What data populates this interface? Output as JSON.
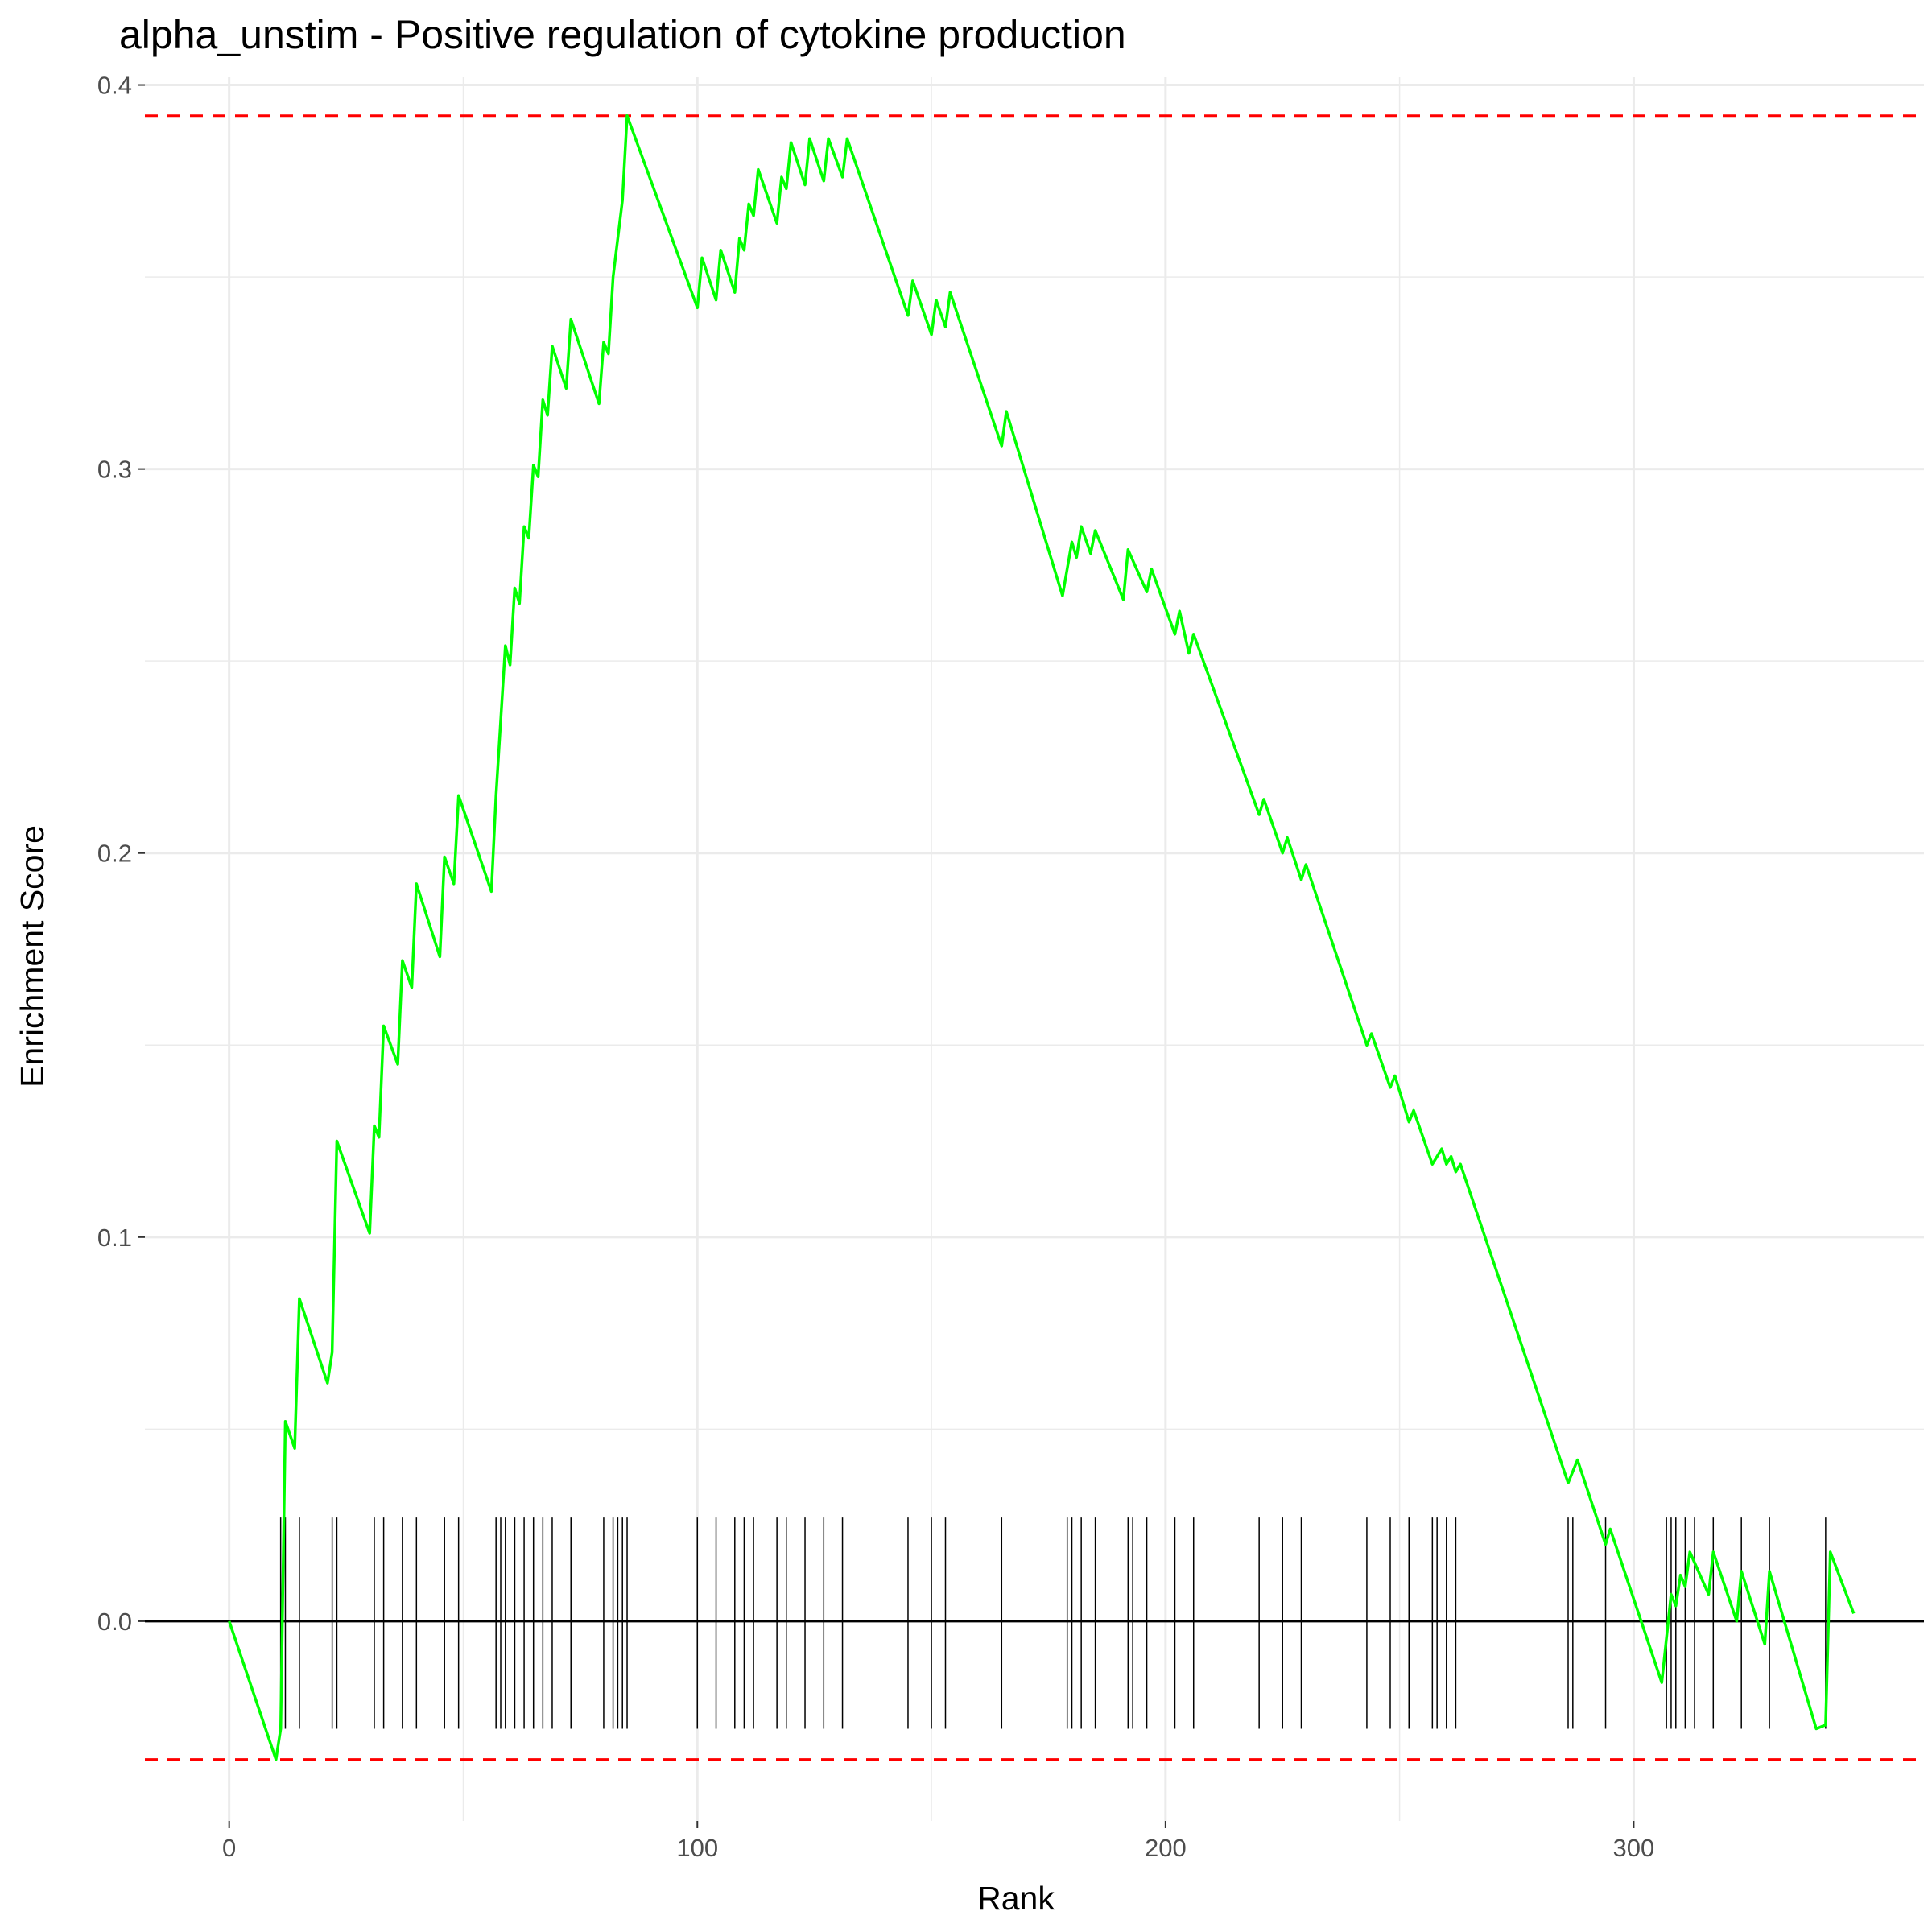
{
  "chart_data": {
    "type": "line",
    "title": "alpha_unstim - Positive regulation of cytokine production",
    "xlabel": "Rank",
    "ylabel": "Enrichment Score",
    "xlim": [
      -18,
      362
    ],
    "ylim": [
      -0.052,
      0.402
    ],
    "x_ticks": [
      0,
      100,
      200,
      300
    ],
    "y_ticks": [
      0.0,
      0.1,
      0.2,
      0.3,
      0.4
    ],
    "x_tick_labels": [
      "0",
      "100",
      "200",
      "300"
    ],
    "y_tick_labels": [
      "0.0",
      "0.1",
      "0.2",
      "0.3",
      "0.4"
    ],
    "grid": true,
    "legend": "none",
    "colors": {
      "line": "#00ff00",
      "threshold": "#ff0000",
      "zero_line": "#000000",
      "ticks": "#000000",
      "grid": "#ebebeb"
    },
    "series": [
      {
        "values": [
          [
            0,
            0.0
          ],
          [
            10,
            -0.036
          ],
          [
            11,
            -0.028
          ],
          [
            12,
            0.052
          ],
          [
            14,
            0.045
          ],
          [
            15,
            0.084
          ],
          [
            21,
            0.062
          ],
          [
            22,
            0.07
          ],
          [
            23,
            0.125
          ],
          [
            30,
            0.101
          ],
          [
            31,
            0.129
          ],
          [
            32,
            0.126
          ],
          [
            33,
            0.155
          ],
          [
            36,
            0.145
          ],
          [
            37,
            0.172
          ],
          [
            39,
            0.165
          ],
          [
            40,
            0.192
          ],
          [
            45,
            0.173
          ],
          [
            46,
            0.199
          ],
          [
            48,
            0.192
          ],
          [
            49,
            0.215
          ],
          [
            56,
            0.19
          ],
          [
            57,
            0.215
          ],
          [
            59,
            0.254
          ],
          [
            60,
            0.249
          ],
          [
            61,
            0.269
          ],
          [
            62,
            0.265
          ],
          [
            63,
            0.285
          ],
          [
            64,
            0.282
          ],
          [
            65,
            0.301
          ],
          [
            66,
            0.298
          ],
          [
            67,
            0.318
          ],
          [
            68,
            0.314
          ],
          [
            69,
            0.332
          ],
          [
            72,
            0.321
          ],
          [
            73,
            0.339
          ],
          [
            79,
            0.317
          ],
          [
            80,
            0.333
          ],
          [
            81,
            0.33
          ],
          [
            82,
            0.35
          ],
          [
            84,
            0.37
          ],
          [
            85,
            0.392
          ],
          [
            100,
            0.342
          ],
          [
            101,
            0.355
          ],
          [
            104,
            0.344
          ],
          [
            105,
            0.357
          ],
          [
            108,
            0.346
          ],
          [
            109,
            0.36
          ],
          [
            110,
            0.357
          ],
          [
            111,
            0.369
          ],
          [
            112,
            0.366
          ],
          [
            113,
            0.378
          ],
          [
            117,
            0.364
          ],
          [
            118,
            0.376
          ],
          [
            119,
            0.373
          ],
          [
            120,
            0.385
          ],
          [
            123,
            0.374
          ],
          [
            124,
            0.386
          ],
          [
            127,
            0.375
          ],
          [
            128,
            0.386
          ],
          [
            131,
            0.376
          ],
          [
            132,
            0.386
          ],
          [
            145,
            0.34
          ],
          [
            146,
            0.349
          ],
          [
            150,
            0.335
          ],
          [
            151,
            0.344
          ],
          [
            153,
            0.337
          ],
          [
            154,
            0.346
          ],
          [
            165,
            0.306
          ],
          [
            166,
            0.315
          ],
          [
            178,
            0.267
          ],
          [
            180,
            0.281
          ],
          [
            181,
            0.277
          ],
          [
            182,
            0.285
          ],
          [
            184,
            0.278
          ],
          [
            185,
            0.284
          ],
          [
            191,
            0.266
          ],
          [
            192,
            0.279
          ],
          [
            196,
            0.268
          ],
          [
            197,
            0.274
          ],
          [
            202,
            0.257
          ],
          [
            203,
            0.263
          ],
          [
            205,
            0.252
          ],
          [
            206,
            0.257
          ],
          [
            220,
            0.21
          ],
          [
            221,
            0.214
          ],
          [
            225,
            0.2
          ],
          [
            226,
            0.204
          ],
          [
            229,
            0.193
          ],
          [
            230,
            0.197
          ],
          [
            243,
            0.15
          ],
          [
            244,
            0.153
          ],
          [
            248,
            0.139
          ],
          [
            249,
            0.142
          ],
          [
            252,
            0.13
          ],
          [
            253,
            0.133
          ],
          [
            257,
            0.119
          ],
          [
            259,
            0.123
          ],
          [
            260,
            0.119
          ],
          [
            261,
            0.121
          ],
          [
            262,
            0.117
          ],
          [
            263,
            0.119
          ],
          [
            286,
            0.036
          ],
          [
            288,
            0.042
          ],
          [
            294,
            0.02
          ],
          [
            295,
            0.024
          ],
          [
            306,
            -0.016
          ],
          [
            308,
            0.007
          ],
          [
            309,
            0.004
          ],
          [
            310,
            0.012
          ],
          [
            311,
            0.009
          ],
          [
            312,
            0.018
          ],
          [
            316,
            0.007
          ],
          [
            317,
            0.018
          ],
          [
            322,
            0.0
          ],
          [
            323,
            0.013
          ],
          [
            328,
            -0.006
          ],
          [
            329,
            0.013
          ],
          [
            339,
            -0.028
          ],
          [
            341,
            -0.027
          ],
          [
            342,
            0.018
          ],
          [
            347,
            0.002
          ]
        ]
      }
    ],
    "reference_lines": {
      "zero": 0.0,
      "max_es": 0.392,
      "min_es": -0.036
    },
    "hit_ranks": [
      11,
      12,
      15,
      22,
      23,
      31,
      33,
      37,
      40,
      46,
      49,
      57,
      58,
      59,
      61,
      63,
      65,
      67,
      69,
      73,
      80,
      82,
      83,
      84,
      85,
      100,
      104,
      108,
      110,
      112,
      117,
      119,
      123,
      127,
      131,
      145,
      150,
      153,
      165,
      179,
      180,
      182,
      185,
      192,
      193,
      196,
      202,
      206,
      220,
      225,
      229,
      243,
      248,
      252,
      257,
      258,
      260,
      262,
      286,
      287,
      294,
      307,
      308,
      309,
      311,
      313,
      317,
      323,
      329,
      341
    ],
    "hit_band": [
      -0.028,
      0.027
    ]
  }
}
